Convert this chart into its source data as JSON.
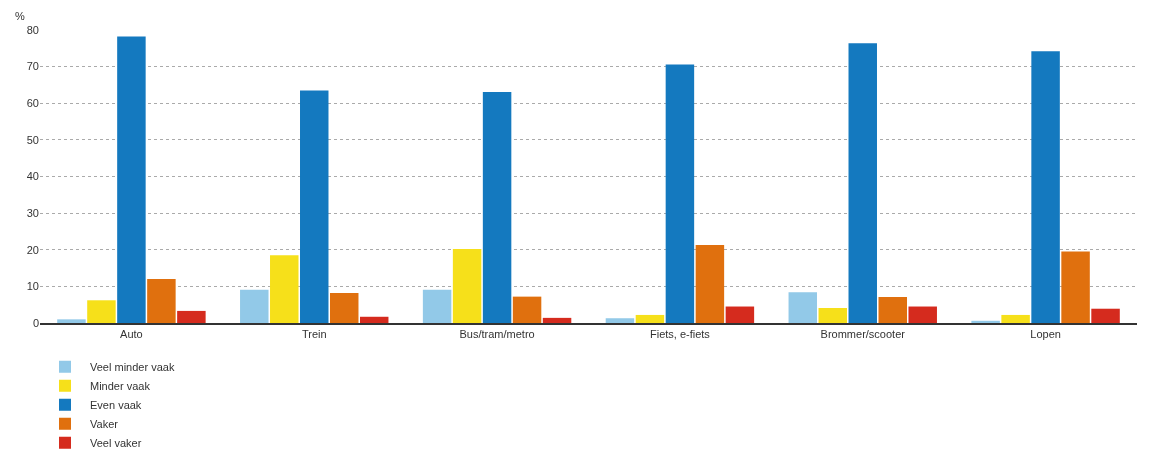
{
  "chart_data": {
    "type": "bar",
    "ylabel": "%",
    "categories": [
      "Auto",
      "Trein",
      "Bus/tram/metro",
      "Fiets, e-fiets",
      "Brommer/scooter",
      "Lopen"
    ],
    "series": [
      {
        "name": "Veel minder vaak",
        "color": "#92c9e8",
        "values": [
          1.0,
          9.1,
          9.1,
          1.3,
          8.4,
          0.6
        ]
      },
      {
        "name": "Minder vaak",
        "color": "#f6e01a",
        "values": [
          6.2,
          18.5,
          20.2,
          2.2,
          4.1,
          2.2
        ]
      },
      {
        "name": "Even vaak",
        "color": "#1479bf",
        "values": [
          78.2,
          63.5,
          63.1,
          70.6,
          76.4,
          74.2
        ]
      },
      {
        "name": "Vaker",
        "color": "#e0700e",
        "values": [
          12.0,
          8.2,
          7.2,
          21.3,
          7.1,
          19.5
        ]
      },
      {
        "name": "Veel vaker",
        "color": "#d52b1e",
        "values": [
          3.3,
          1.7,
          1.4,
          4.5,
          4.5,
          3.9
        ]
      }
    ],
    "ylim": [
      0,
      80
    ],
    "yticks": [
      0,
      10,
      20,
      30,
      40,
      50,
      60,
      70,
      80
    ],
    "grid": "y",
    "legend": "bottom left"
  }
}
